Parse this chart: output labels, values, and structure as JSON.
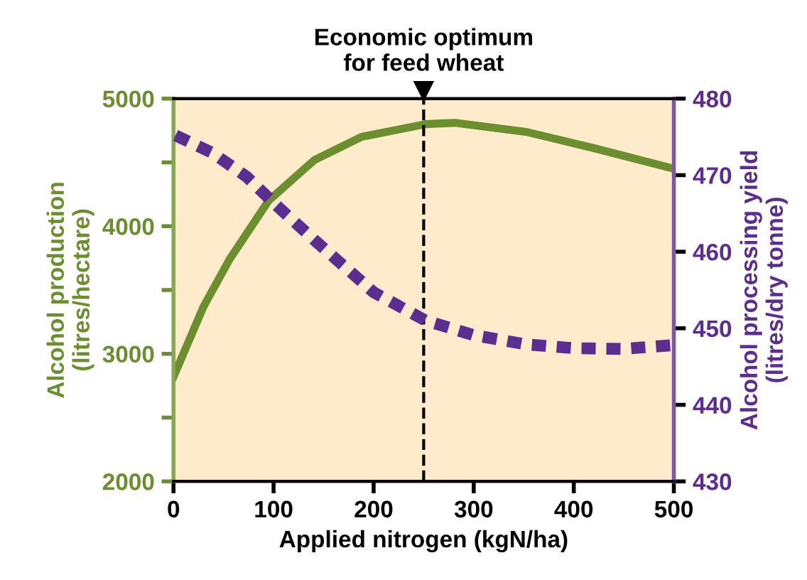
{
  "chart_data": {
    "type": "line",
    "xlabel": "Applied nitrogen (kgN/ha)",
    "ylabel": "Alcohol production\n(litres/hectare)",
    "y2label": "Alcohol processing yield\n(litres/dry tonne)",
    "series": [
      {
        "color": "#6b8e2e",
        "line_style": "solid",
        "x": [
          0,
          30,
          56,
          95,
          141,
          188,
          252,
          281,
          352,
          421,
          500
        ],
        "values": [
          2820,
          3370,
          3740,
          4200,
          4520,
          4700,
          4800,
          4810,
          4740,
          4610,
          4450
        ]
      },
      {
        "color": "#5c2d91",
        "line_style": "dotted",
        "axis": "y2",
        "x": [
          2,
          39,
          73,
          100,
          141,
          200,
          252,
          300,
          352,
          400,
          448,
          500
        ],
        "values": [
          475.2,
          472.9,
          469.8,
          466.4,
          461.5,
          454.7,
          451.0,
          449.1,
          447.9,
          447.4,
          447.3,
          447.8
        ]
      }
    ],
    "xlim": [
      0,
      500
    ],
    "xticks": [
      0,
      100,
      200,
      300,
      400,
      500
    ],
    "ylim": [
      2000,
      5000
    ],
    "yticks": [
      2000,
      {
        "value": 2500,
        "label": null
      },
      3000,
      {
        "value": 3500,
        "label": null
      },
      4000,
      {
        "value": 4500,
        "label": null
      },
      5000
    ],
    "y2lim": [
      430,
      480
    ],
    "y2ticks": [
      430,
      440,
      450,
      460,
      470,
      480
    ],
    "ref_lines": [
      {
        "axis": "x",
        "value": 250,
        "label": "Economic optimum\nfor feed wheat",
        "color": "#000000",
        "line_style": "dashed"
      }
    ],
    "grid": false,
    "legend": false,
    "marker": "none"
  }
}
